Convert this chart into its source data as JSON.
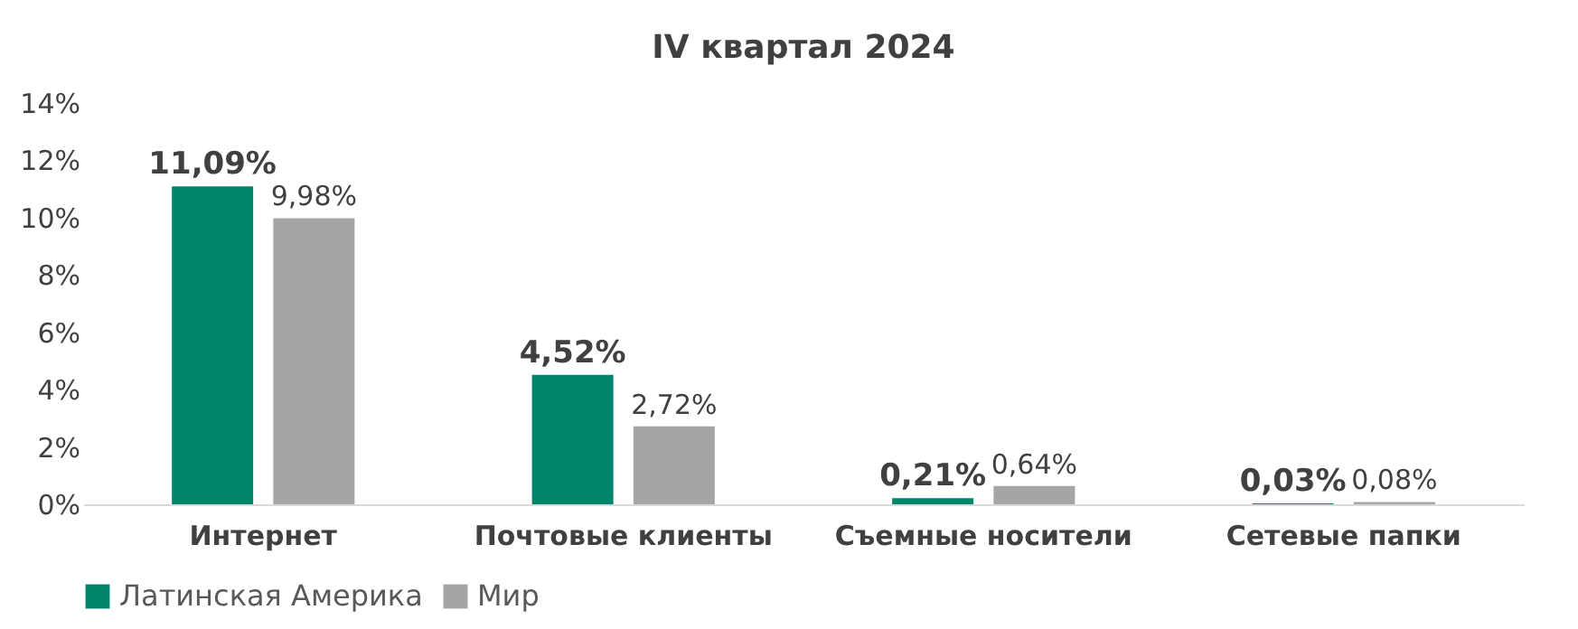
{
  "chart_data": {
    "type": "bar",
    "title": "IV квартал 2024",
    "categories": [
      "Интернет",
      "Почтовые клиенты",
      "Съемные носители",
      "Сетевые папки"
    ],
    "series": [
      {
        "name": "Латинская Америка",
        "color": "#00846c",
        "values": [
          11.09,
          4.52,
          0.21,
          0.03
        ],
        "value_labels": [
          "11,09%",
          "4,52%",
          "0,21%",
          "0,03%"
        ]
      },
      {
        "name": "Мир",
        "color": "#a5a5a5",
        "values": [
          9.98,
          2.72,
          0.64,
          0.08
        ],
        "value_labels": [
          "9,98%",
          "2,72%",
          "0,64%",
          "0,08%"
        ]
      }
    ],
    "ylim": [
      0,
      14
    ],
    "yticks": [
      {
        "value": 0,
        "label": "0%"
      },
      {
        "value": 2,
        "label": "2%"
      },
      {
        "value": 4,
        "label": "4%"
      },
      {
        "value": 6,
        "label": "6%"
      },
      {
        "value": 8,
        "label": "8%"
      },
      {
        "value": 10,
        "label": "10%"
      },
      {
        "value": 12,
        "label": "12%"
      },
      {
        "value": 14,
        "label": "14%"
      }
    ],
    "grid": false,
    "legend": "bottom"
  }
}
